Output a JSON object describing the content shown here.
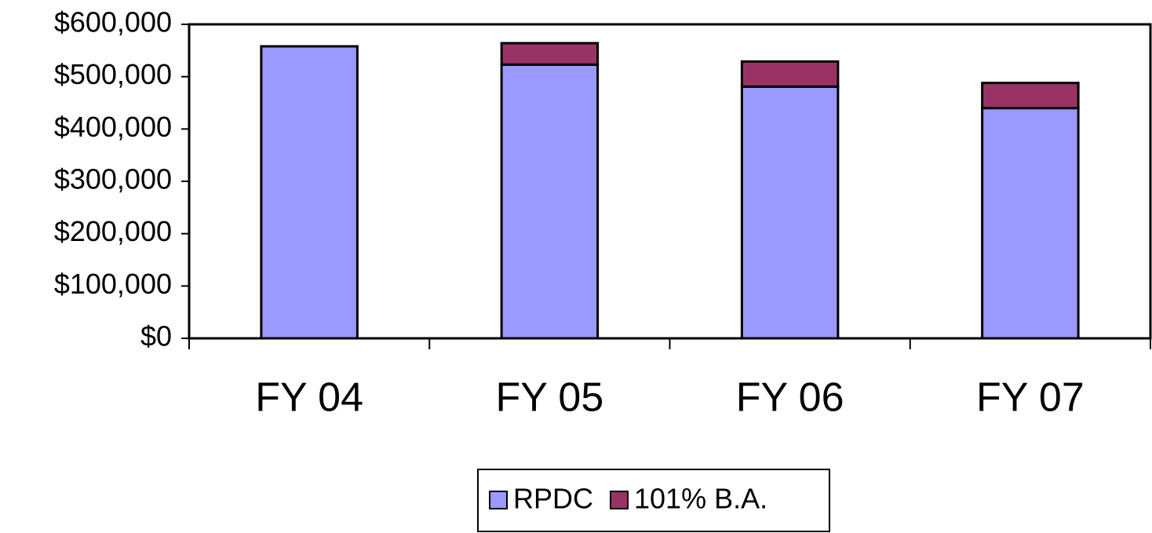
{
  "chart_data": {
    "type": "stacked_bar",
    "categories": [
      "FY 04",
      "FY 05",
      "FY 06",
      "FY 07"
    ],
    "series": [
      {
        "name": "RPDC",
        "color": "#9999ff",
        "values": [
          558000,
          523000,
          481000,
          440000
        ]
      },
      {
        "name": "101% B.A.",
        "color": "#993366",
        "values": [
          0,
          41000,
          48000,
          48000
        ]
      }
    ],
    "ylim": [
      0,
      600000
    ],
    "yticks": [
      {
        "value": 0,
        "label": "$0"
      },
      {
        "value": 100000,
        "label": "$100,000"
      },
      {
        "value": 200000,
        "label": "$200,000"
      },
      {
        "value": 300000,
        "label": "$300,000"
      },
      {
        "value": 400000,
        "label": "$400,000"
      },
      {
        "value": 500000,
        "label": "$500,000"
      },
      {
        "value": 600000,
        "label": "$600,000"
      }
    ],
    "legend": "bottom"
  }
}
